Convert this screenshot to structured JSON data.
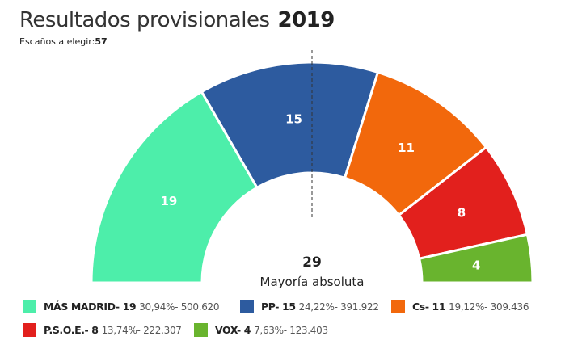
{
  "header": {
    "title": "Resultados provisionales",
    "year": "2019",
    "seats_label": "Escaños a elegir:",
    "seats_total": "57"
  },
  "chart_data": {
    "type": "pie",
    "variant": "parliament-semicircle",
    "total_seats": 57,
    "majority": {
      "value": "29",
      "label": "Mayoría absoluta"
    },
    "series": [
      {
        "name": "MÁS MADRID",
        "seats": 19,
        "label": "19",
        "percent": "30,94%",
        "votes": "500.620",
        "color": "#4deeaa",
        "legend_name": "MÁS MADRID- 19",
        "legend_value": "30,94%- 500.620"
      },
      {
        "name": "PP",
        "seats": 15,
        "label": "15",
        "percent": "24,22%",
        "votes": "391.922",
        "color": "#2d5b9f",
        "legend_name": "PP- 15",
        "legend_value": "24,22%- 391.922"
      },
      {
        "name": "Cs",
        "seats": 11,
        "label": "11",
        "percent": "19,12%",
        "votes": "309.436",
        "color": "#f2680c",
        "legend_name": "Cs- 11",
        "legend_value": "19,12%- 309.436"
      },
      {
        "name": "P.S.O.E.",
        "seats": 8,
        "label": "8",
        "percent": "13,74%",
        "votes": "222.307",
        "color": "#e2201d",
        "legend_name": "P.S.O.E.- 8",
        "legend_value": "13,74%- 222.307"
      },
      {
        "name": "VOX",
        "seats": 4,
        "label": "4",
        "percent": "7,63%",
        "votes": "123.403",
        "color": "#69b42e",
        "legend_name": "VOX- 4",
        "legend_value": "7,63%- 123.403"
      }
    ]
  }
}
